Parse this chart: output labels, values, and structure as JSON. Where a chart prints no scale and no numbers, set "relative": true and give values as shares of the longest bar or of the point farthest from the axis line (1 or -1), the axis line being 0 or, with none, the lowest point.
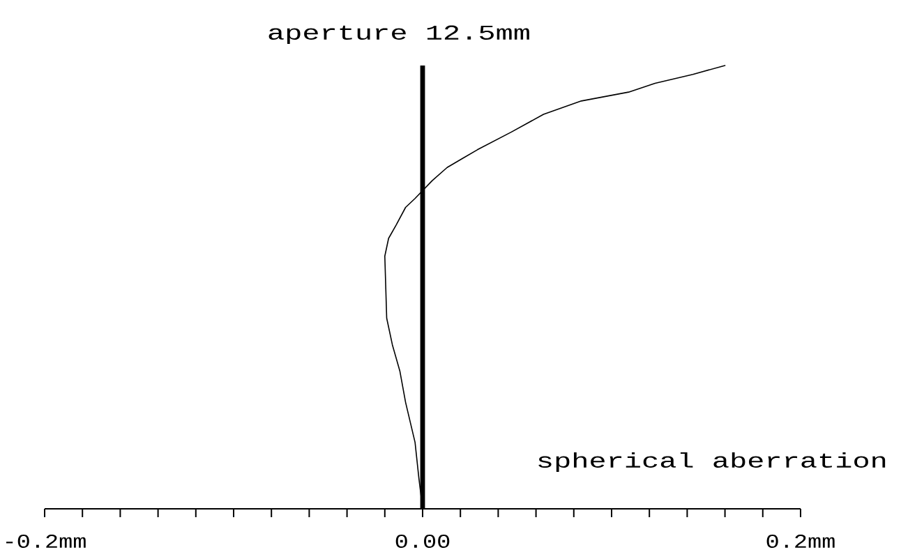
{
  "chart_data": {
    "type": "line",
    "xlabel": "spherical aberration",
    "ylabel": "aperture  12.5mm",
    "relative": true,
    "xlim": [
      -0.2,
      0.2
    ],
    "xticks": [
      {
        "value": -0.2,
        "label": "-0.2mm"
      },
      {
        "value": -0.18,
        "label": null
      },
      {
        "value": -0.16,
        "label": null
      },
      {
        "value": -0.14,
        "label": null
      },
      {
        "value": -0.12,
        "label": null
      },
      {
        "value": -0.1,
        "label": null
      },
      {
        "value": -0.08,
        "label": null
      },
      {
        "value": -0.06,
        "label": null
      },
      {
        "value": -0.04,
        "label": null
      },
      {
        "value": -0.02,
        "label": null
      },
      {
        "value": 0,
        "label": "0.00"
      },
      {
        "value": 0.02,
        "label": null
      },
      {
        "value": 0.04,
        "label": null
      },
      {
        "value": 0.06,
        "label": null
      },
      {
        "value": 0.08,
        "label": null
      },
      {
        "value": 0.1,
        "label": null
      },
      {
        "value": 0.12,
        "label": null
      },
      {
        "value": 0.14,
        "label": null
      },
      {
        "value": 0.16,
        "label": null
      },
      {
        "value": 0.18,
        "label": null
      },
      {
        "value": 0.2,
        "label": "0.2mm"
      }
    ],
    "x": [
      0,
      -0.002,
      -0.004,
      -0.009,
      -0.012,
      -0.016,
      -0.019,
      -0.02,
      -0.018,
      -0.014,
      -0.009,
      -0.004,
      0.005,
      0.013,
      0.021,
      0.029,
      0.047,
      0.064,
      0.084,
      0.109,
      0.123,
      0.143,
      0.16
    ],
    "values": [
      0,
      0.07,
      0.15,
      0.24,
      0.31,
      0.37,
      0.43,
      0.57,
      0.61,
      0.64,
      0.68,
      0.7,
      0.74,
      0.77,
      0.79,
      0.81,
      0.85,
      0.89,
      0.92,
      0.94,
      0.96,
      0.98,
      1
    ],
    "color": "#000000"
  }
}
